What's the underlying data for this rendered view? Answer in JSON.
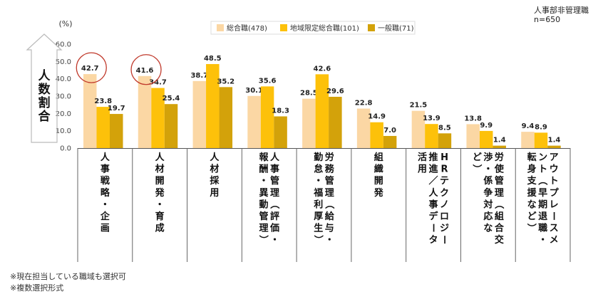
{
  "respondent": {
    "group": "人事部非管理職",
    "n": "n=650"
  },
  "notes": [
    "※現在担当している職域も選択可",
    "※複数選択形式"
  ],
  "chart_data": {
    "type": "bar",
    "unit_label": "(%)",
    "ylabel": "人数割合",
    "ylim": [
      0,
      60
    ],
    "yticks": [
      "0.0",
      "10.0",
      "20.0",
      "30.0",
      "40.0",
      "50.0",
      "60.0"
    ],
    "legend_position": "top",
    "categories": [
      [
        "人事戦略・企画"
      ],
      [
        "人材開発・育成"
      ],
      [
        "人材採用"
      ],
      [
        "人事管理（評価・",
        "報酬・異動管理）"
      ],
      [
        "労務管理（給与・",
        "勤怠・福利厚生）"
      ],
      [
        "組織開発"
      ],
      [
        "HRテクノロジー",
        "推進／人事データ",
        "活用"
      ],
      [
        "労使管理（組合交",
        "渉・係争対応な",
        "ど）"
      ],
      [
        "アウトプレースメ",
        "ント（早期退職・",
        "転身支援など）"
      ]
    ],
    "series": [
      {
        "name": "総合職(478)",
        "color": "#fbd7a4",
        "values": [
          42.7,
          41.6,
          38.7,
          30.1,
          28.5,
          22.8,
          21.5,
          13.8,
          9.4
        ]
      },
      {
        "name": "地域限定総合職(101)",
        "color": "#fdc10a",
        "values": [
          23.8,
          34.7,
          48.5,
          35.6,
          42.6,
          14.9,
          13.9,
          9.9,
          8.9
        ]
      },
      {
        "name": "一般職(71)",
        "color": "#d3a20a",
        "values": [
          19.7,
          25.4,
          35.2,
          18.3,
          29.6,
          7.0,
          8.5,
          1.4,
          1.4
        ]
      }
    ],
    "highlighted": [
      {
        "series": 0,
        "category": 0
      },
      {
        "series": 0,
        "category": 1
      }
    ]
  }
}
